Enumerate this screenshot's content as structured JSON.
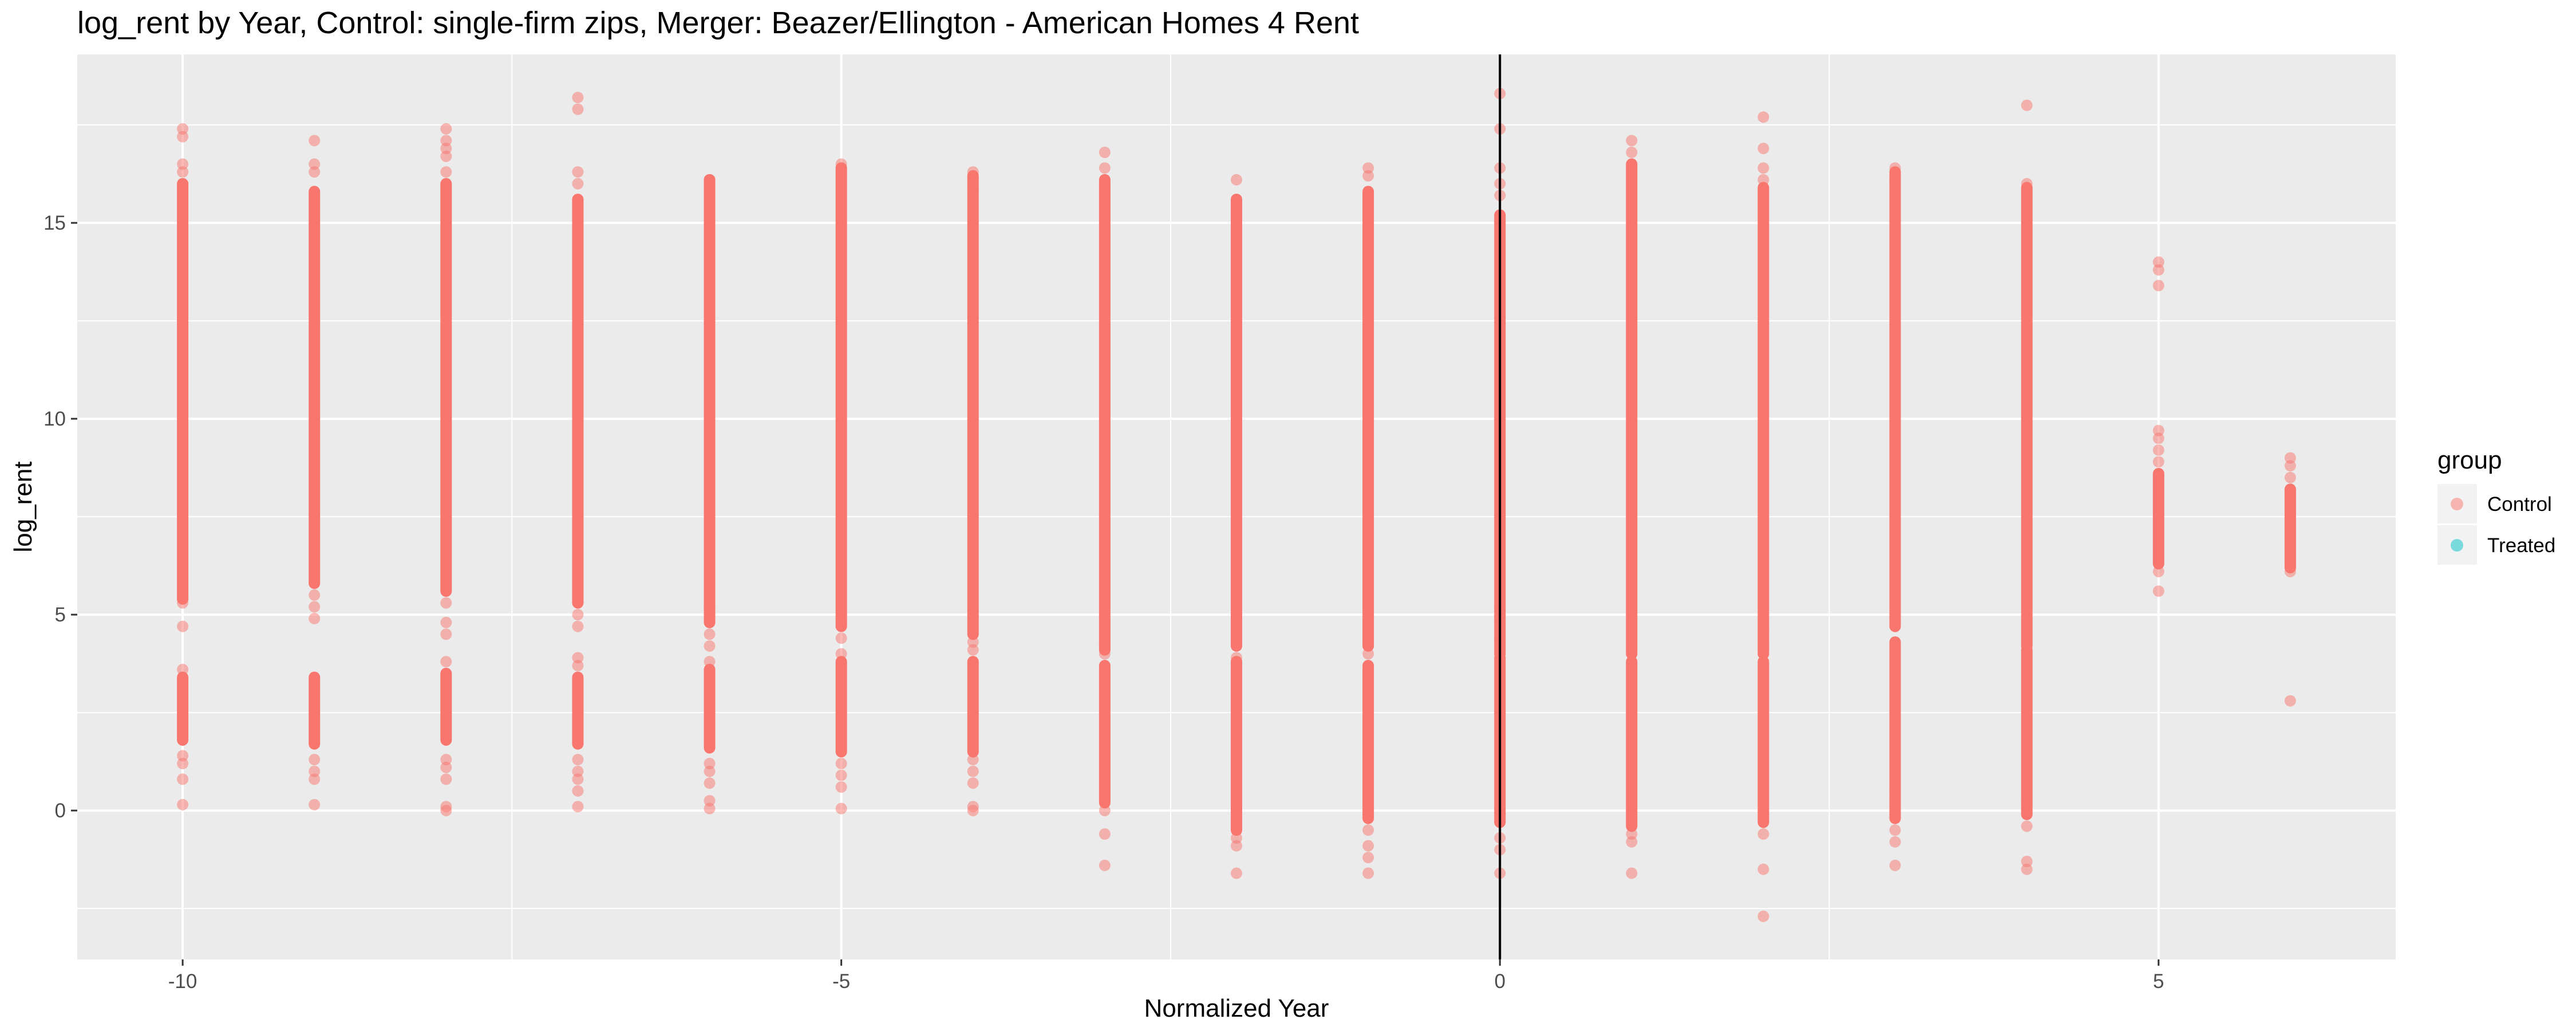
{
  "chart_data": {
    "type": "scatter",
    "title": "log_rent by Year, Control: single-firm zips, Merger: Beazer/Ellington - American Homes 4 Rent",
    "xlabel": "Normalized Year",
    "ylabel": "log_rent",
    "xlim": [
      -10.8,
      6.8
    ],
    "ylim": [
      -3.8,
      19.3
    ],
    "x_ticks": [
      -10,
      -5,
      0,
      5
    ],
    "x_tick_labels": [
      "-10",
      "-5",
      "0",
      "5"
    ],
    "y_ticks": [
      0,
      5,
      10,
      15
    ],
    "y_tick_labels": [
      "0",
      "5",
      "10",
      "15"
    ],
    "vline_x": 0,
    "grid": true,
    "legend": {
      "title": "group",
      "position": "right",
      "entries": [
        {
          "label": "Control",
          "color": "#F8766D"
        },
        {
          "label": "Treated",
          "color": "#00BFC4"
        }
      ]
    },
    "point_alpha": 0.5,
    "series": [
      {
        "name": "Control",
        "color": "#F8766D",
        "columns": [
          {
            "x": -10,
            "bands": [
              [
                5.4,
                16.0
              ],
              [
                1.8,
                3.4
              ]
            ],
            "points": [
              17.4,
              17.2,
              16.5,
              16.3,
              5.3,
              4.7,
              3.6,
              1.4,
              1.2,
              0.8,
              0.15
            ]
          },
          {
            "x": -9,
            "bands": [
              [
                5.8,
                15.8
              ],
              [
                1.7,
                3.4
              ]
            ],
            "points": [
              17.1,
              16.5,
              16.3,
              5.5,
              5.2,
              4.9,
              1.3,
              1.0,
              0.8,
              0.15
            ]
          },
          {
            "x": -8,
            "bands": [
              [
                5.6,
                16.0
              ],
              [
                1.8,
                3.5
              ]
            ],
            "points": [
              17.4,
              17.1,
              16.9,
              16.7,
              16.3,
              5.3,
              4.8,
              4.5,
              3.8,
              1.3,
              1.1,
              0.8,
              0.1,
              0.0
            ]
          },
          {
            "x": -7,
            "bands": [
              [
                5.3,
                15.6
              ],
              [
                1.7,
                3.4
              ]
            ],
            "points": [
              18.2,
              17.9,
              16.3,
              16.0,
              5.0,
              4.7,
              3.9,
              3.7,
              1.3,
              1.0,
              0.8,
              0.5,
              0.1
            ]
          },
          {
            "x": -6,
            "bands": [
              [
                4.8,
                16.1
              ],
              [
                1.6,
                3.6
              ]
            ],
            "points": [
              16.1,
              5.2,
              4.5,
              4.2,
              3.8,
              1.2,
              1.0,
              0.7,
              0.25,
              0.05
            ]
          },
          {
            "x": -5,
            "bands": [
              [
                4.7,
                16.4
              ],
              [
                1.5,
                3.8
              ]
            ],
            "points": [
              16.5,
              4.4,
              4.0,
              1.2,
              0.9,
              0.6,
              0.05
            ]
          },
          {
            "x": -4,
            "bands": [
              [
                4.5,
                16.2
              ],
              [
                1.5,
                3.8
              ]
            ],
            "points": [
              16.3,
              15.8,
              4.3,
              4.1,
              1.3,
              1.0,
              0.7,
              0.1,
              0.0
            ]
          },
          {
            "x": -3,
            "bands": [
              [
                4.1,
                16.1
              ],
              [
                0.2,
                3.7
              ]
            ],
            "points": [
              16.8,
              16.4,
              4.2,
              4.0,
              0.0,
              -0.6,
              -1.4
            ]
          },
          {
            "x": -2,
            "bands": [
              [
                4.2,
                15.6
              ],
              [
                -0.5,
                3.8
              ]
            ],
            "points": [
              16.1,
              3.9,
              -0.7,
              -0.9,
              -1.6
            ]
          },
          {
            "x": -1,
            "bands": [
              [
                4.2,
                15.8
              ],
              [
                -0.2,
                3.7
              ]
            ],
            "points": [
              16.4,
              16.2,
              4.0,
              -0.5,
              -0.9,
              -1.2,
              -1.6
            ]
          },
          {
            "x": 0,
            "bands": [
              [
                4.0,
                15.2
              ],
              [
                -0.3,
                3.9
              ]
            ],
            "points": [
              18.3,
              17.4,
              16.4,
              16.0,
              15.7,
              5.2,
              4.8,
              4.4,
              -0.7,
              -1.0,
              -1.6
            ]
          },
          {
            "x": 1,
            "bands": [
              [
                4.0,
                16.5
              ],
              [
                -0.4,
                3.8
              ]
            ],
            "points": [
              17.1,
              16.8,
              4.3,
              4.1,
              -0.6,
              -0.8,
              -1.6
            ]
          },
          {
            "x": 2,
            "bands": [
              [
                4.0,
                15.9
              ],
              [
                -0.3,
                3.8
              ]
            ],
            "points": [
              17.7,
              16.9,
              16.4,
              16.1,
              4.6,
              4.2,
              -0.6,
              -1.5,
              -2.7
            ]
          },
          {
            "x": 3,
            "bands": [
              [
                4.7,
                16.3
              ],
              [
                -0.2,
                4.3
              ]
            ],
            "points": [
              16.4,
              16.1,
              0.5,
              0.2,
              -0.5,
              -0.8,
              -1.4
            ]
          },
          {
            "x": 4,
            "bands": [
              [
                4.2,
                15.9
              ],
              [
                -0.1,
                4.1
              ]
            ],
            "points": [
              18.0,
              16.0,
              0.3,
              0.0,
              -0.4,
              -1.3,
              -1.5
            ]
          },
          {
            "x": 5,
            "bands": [
              [
                6.3,
                8.6
              ]
            ],
            "points": [
              14.0,
              13.8,
              13.4,
              9.7,
              9.5,
              9.2,
              8.9,
              6.1,
              5.6
            ]
          },
          {
            "x": 6,
            "bands": [
              [
                6.2,
                8.2
              ]
            ],
            "points": [
              9.0,
              8.8,
              8.5,
              7.6,
              7.2,
              6.8,
              6.4,
              6.1,
              2.8
            ]
          }
        ]
      },
      {
        "name": "Treated",
        "color": "#00BFC4",
        "columns": []
      }
    ]
  }
}
